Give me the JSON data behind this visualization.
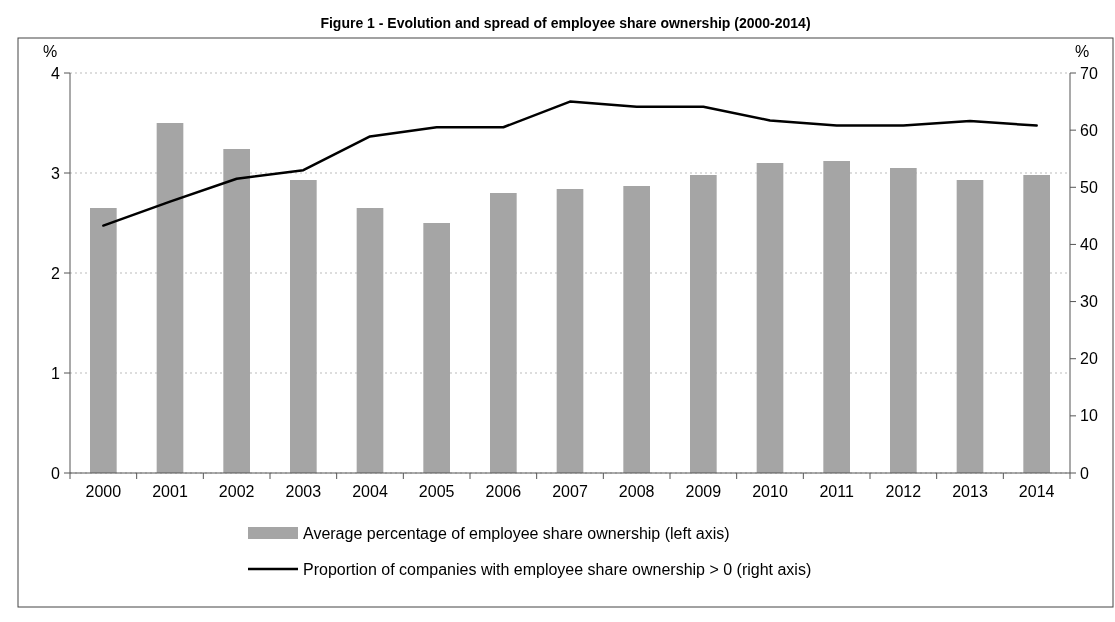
{
  "chart_data": {
    "type": "bar",
    "title": "Figure 1 - Evolution and spread of employee share ownership (2000-2014)",
    "categories": [
      "2000",
      "2001",
      "2002",
      "2003",
      "2004",
      "2005",
      "2006",
      "2007",
      "2008",
      "2009",
      "2010",
      "2011",
      "2012",
      "2013",
      "2014"
    ],
    "series": [
      {
        "name": "Average percentage of employee share ownership (left axis)",
        "color": "#a5a5a5",
        "values": [
          2.65,
          3.5,
          3.24,
          2.93,
          2.65,
          2.5,
          2.8,
          2.84,
          2.87,
          2.98,
          3.1,
          3.12,
          3.05,
          2.93,
          2.98
        ]
      },
      {
        "name": "Proportion of companies with employee share ownership > 0 (right axis)",
        "type": "line",
        "axis": "y2",
        "color": "#000000",
        "values": [
          43.3,
          47.5,
          51.5,
          53,
          58.9,
          60.5,
          60.5,
          65,
          64.1,
          64.1,
          61.7,
          60.8,
          60.8,
          61.6,
          60.8
        ]
      }
    ],
    "ylabel": "%",
    "y2label": "%",
    "ylim": [
      0,
      4
    ],
    "yticks": [
      0,
      1,
      2,
      3,
      4
    ],
    "y2lim": [
      0,
      70
    ],
    "y2ticks": [
      0,
      10,
      20,
      30,
      40,
      50,
      60,
      70
    ],
    "grid": "y",
    "legend": "bottom",
    "marker": "none",
    "line_style": "solid"
  }
}
